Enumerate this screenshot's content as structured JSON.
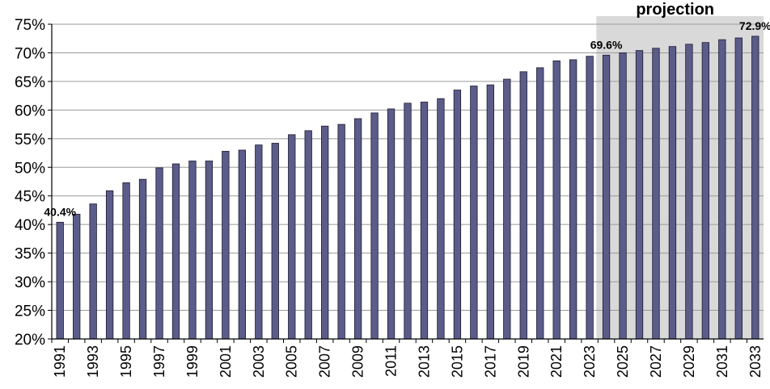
{
  "chart_data": {
    "type": "bar",
    "title": "",
    "xlabel": "",
    "ylabel": "",
    "ylim": [
      20,
      75
    ],
    "yticks": [
      "20%",
      "25%",
      "30%",
      "35%",
      "40%",
      "45%",
      "50%",
      "55%",
      "60%",
      "65%",
      "70%",
      "75%"
    ],
    "grid": true,
    "bar_color": "#5c5c8a",
    "projection_shade_color": "#d9d9d9",
    "projection_label": "projection",
    "projection_start": "2024",
    "categories": [
      "1991",
      "1992",
      "1993",
      "1994",
      "1995",
      "1996",
      "1997",
      "1998",
      "1999",
      "2000",
      "2001",
      "2002",
      "2003",
      "2004",
      "2005",
      "2006",
      "2007",
      "2008",
      "2009",
      "2010",
      "2011",
      "2012",
      "2013",
      "2014",
      "2015",
      "2016",
      "2017",
      "2018",
      "2019",
      "2020",
      "2021",
      "2022",
      "2023",
      "2024",
      "2025",
      "2026",
      "2027",
      "2028",
      "2029",
      "2030",
      "2031",
      "2032",
      "2033"
    ],
    "xtick_labels": [
      "1991",
      "",
      "1993",
      "",
      "1995",
      "",
      "1997",
      "",
      "1999",
      "",
      "2001",
      "",
      "2003",
      "",
      "2005",
      "",
      "2007",
      "",
      "2009",
      "",
      "2011",
      "",
      "2013",
      "",
      "2015",
      "",
      "2017",
      "",
      "2019",
      "",
      "2021",
      "",
      "2023",
      "",
      "2025",
      "",
      "2027",
      "",
      "2029",
      "",
      "2031",
      "",
      "2033"
    ],
    "values": [
      40.4,
      41.8,
      43.6,
      45.9,
      47.3,
      47.9,
      49.9,
      50.6,
      51.1,
      51.1,
      52.8,
      53.0,
      53.9,
      54.2,
      55.7,
      56.4,
      57.2,
      57.5,
      58.5,
      59.5,
      60.2,
      61.2,
      61.4,
      62.0,
      63.5,
      64.2,
      64.4,
      65.4,
      66.7,
      67.4,
      68.6,
      68.8,
      69.4,
      69.6,
      70.0,
      70.4,
      70.8,
      71.1,
      71.5,
      71.8,
      72.3,
      72.6,
      72.9
    ],
    "data_labels": [
      {
        "category": "1991",
        "text": "40.4%"
      },
      {
        "category": "2024",
        "text": "69.6%"
      },
      {
        "category": "2033",
        "text": "72.9%"
      }
    ]
  }
}
